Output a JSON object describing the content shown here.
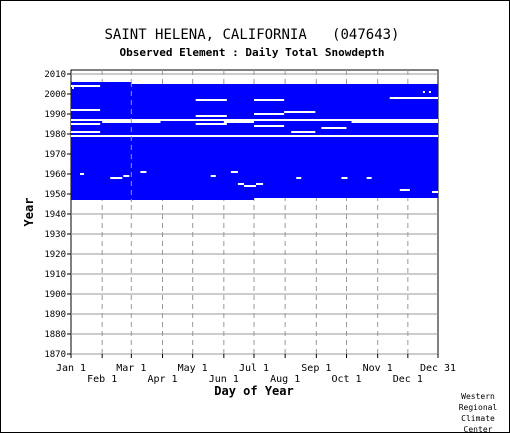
{
  "title": "SAINT HELENA, CALIFORNIA   (047643)",
  "subtitle": "Observed Element : Daily Total Snowdepth",
  "credit": [
    "Western",
    "Regional",
    "Climate",
    "Center"
  ],
  "colors": {
    "fill": "#0000ff",
    "gap": "#ffffff",
    "grid": "#999999",
    "text": "#000000"
  },
  "chart_data": {
    "type": "heatmap",
    "title": "SAINT HELENA, CALIFORNIA   (047643)",
    "subtitle": "Observed Element : Daily Total Snowdepth",
    "xlabel": "Day of Year",
    "ylabel": "Year",
    "xlim": [
      1,
      366
    ],
    "ylim": [
      1870,
      2012
    ],
    "grid": true,
    "x_ticks_upper": [
      {
        "label": "Jan 1",
        "day": 1
      },
      {
        "label": "Mar 1",
        "day": 61
      },
      {
        "label": "May 1",
        "day": 122
      },
      {
        "label": "Jul 1",
        "day": 183
      },
      {
        "label": "Sep 1",
        "day": 245
      },
      {
        "label": "Nov 1",
        "day": 306
      },
      {
        "label": "Dec 31",
        "day": 366
      }
    ],
    "x_ticks_lower": [
      {
        "label": "Feb 1",
        "day": 32
      },
      {
        "label": "Apr 1",
        "day": 92
      },
      {
        "label": "Jun 1",
        "day": 153
      },
      {
        "label": "Aug 1",
        "day": 214
      },
      {
        "label": "Oct 1",
        "day": 275
      },
      {
        "label": "Dec 1",
        "day": 336
      }
    ],
    "y_ticks": [
      2010,
      2000,
      1990,
      1980,
      1970,
      1960,
      1950,
      1940,
      1930,
      1920,
      1910,
      1900,
      1890,
      1880,
      1870
    ],
    "coverage_blocks": [
      {
        "year_start": 2005,
        "year_end": 2006,
        "day_start": 1,
        "day_end": 61
      },
      {
        "year_start": 1948,
        "year_end": 2005,
        "day_start": 1,
        "day_end": 366
      },
      {
        "year_start": 1947,
        "year_end": 1948,
        "day_start": 1,
        "day_end": 183
      }
    ],
    "missing_gaps": [
      {
        "year": 2004,
        "day_start": 1,
        "day_end": 30
      },
      {
        "year": 1998,
        "day_start": 318,
        "day_end": 366
      },
      {
        "year": 1997,
        "day_start": 125,
        "day_end": 156
      },
      {
        "year": 1997,
        "day_start": 183,
        "day_end": 213
      },
      {
        "year": 1992,
        "day_start": 1,
        "day_end": 30
      },
      {
        "year": 1991,
        "day_start": 213,
        "day_end": 244
      },
      {
        "year": 1990,
        "day_start": 183,
        "day_end": 213
      },
      {
        "year": 1989,
        "day_start": 125,
        "day_end": 156
      },
      {
        "year": 1987,
        "day_start": 1,
        "day_end": 366
      },
      {
        "year": 1986,
        "day_start": 32,
        "day_end": 90
      },
      {
        "year": 1986,
        "day_start": 153,
        "day_end": 183
      },
      {
        "year": 1986,
        "day_start": 280,
        "day_end": 366
      },
      {
        "year": 1985,
        "day_start": 1,
        "day_end": 30
      },
      {
        "year": 1985,
        "day_start": 125,
        "day_end": 156
      },
      {
        "year": 1984,
        "day_start": 183,
        "day_end": 213
      },
      {
        "year": 1983,
        "day_start": 250,
        "day_end": 275
      },
      {
        "year": 1981,
        "day_start": 1,
        "day_end": 30
      },
      {
        "year": 1981,
        "day_start": 220,
        "day_end": 244
      },
      {
        "year": 1979,
        "day_start": 1,
        "day_end": 366
      },
      {
        "year": 1961,
        "day_start": 70,
        "day_end": 76
      },
      {
        "year": 1961,
        "day_start": 160,
        "day_end": 167
      },
      {
        "year": 1960,
        "day_start": 10,
        "day_end": 14
      },
      {
        "year": 1959,
        "day_start": 53,
        "day_end": 59
      },
      {
        "year": 1958,
        "day_start": 40,
        "day_end": 52
      },
      {
        "year": 1959,
        "day_start": 140,
        "day_end": 145
      },
      {
        "year": 1958,
        "day_start": 225,
        "day_end": 230
      },
      {
        "year": 1958,
        "day_start": 270,
        "day_end": 276
      },
      {
        "year": 1958,
        "day_start": 295,
        "day_end": 300
      },
      {
        "year": 1955,
        "day_start": 167,
        "day_end": 173
      },
      {
        "year": 1954,
        "day_start": 173,
        "day_end": 185
      },
      {
        "year": 1955,
        "day_start": 185,
        "day_end": 192
      },
      {
        "year": 1952,
        "day_start": 328,
        "day_end": 338
      },
      {
        "year": 1951,
        "day_start": 360,
        "day_end": 366
      }
    ],
    "markers": [
      {
        "year": 2003,
        "day": 3
      },
      {
        "year": 2001,
        "day": 352
      },
      {
        "year": 2001,
        "day": 358
      }
    ],
    "annotation_line": {
      "day": 61,
      "year_start": 1946,
      "year_end": 2006
    }
  }
}
